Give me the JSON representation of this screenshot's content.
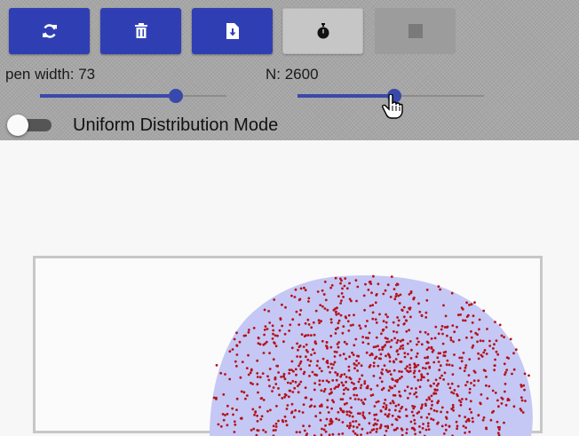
{
  "toolbar": {
    "buttons": [
      {
        "icon": "refresh-icon",
        "enabled": true
      },
      {
        "icon": "trash-icon",
        "enabled": true
      },
      {
        "icon": "file-download-icon",
        "enabled": true
      },
      {
        "icon": "stopwatch-icon",
        "enabled": true
      },
      {
        "icon": "stop-icon",
        "enabled": false
      }
    ],
    "pen_width_label": "pen width: 73",
    "pen_width": {
      "value": 73,
      "fraction": 0.73
    },
    "n_label": "N: 2600",
    "n_slider": {
      "value": 2600,
      "fraction": 0.52
    },
    "uniform_mode": {
      "label": "Uniform Distribution Mode",
      "on": false
    }
  },
  "colors": {
    "primary": "#2f3fb3",
    "slider": "#3949ab",
    "blob_fill": "#c5c8f5",
    "points": "#b5121b"
  }
}
